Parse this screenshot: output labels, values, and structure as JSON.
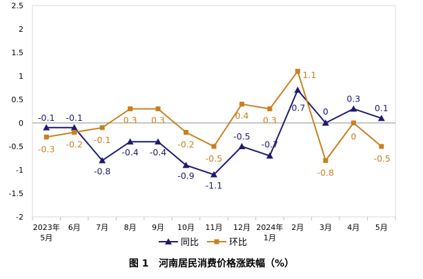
{
  "caption": "图 1   河南居民消费价格涨跌幅（%）",
  "chart_data": {
    "type": "line",
    "title": "",
    "xlabel": "",
    "ylabel": "",
    "categories": [
      "2023年\n5月",
      "6月",
      "7月",
      "8月",
      "9月",
      "10月",
      "11月",
      "12月",
      "2024年\n1月",
      "2月",
      "3月",
      "4月",
      "5月"
    ],
    "ylim": [
      -2,
      2.5
    ],
    "yticks": [
      -2,
      -1.5,
      -1,
      -0.5,
      0,
      0.5,
      1,
      1.5,
      2,
      2.5
    ],
    "ytick_labels": [
      "-2",
      "-1.5",
      "-1",
      "-0.5",
      "0",
      "0.5",
      "1",
      "1.5",
      "2",
      "2.5"
    ],
    "grid": false,
    "legend_position": "bottom-center",
    "series": [
      {
        "name": "同比",
        "color": "#1f1a6e",
        "marker": "triangle",
        "values": [
          -0.1,
          -0.1,
          -0.8,
          -0.4,
          -0.4,
          -0.9,
          -1.1,
          -0.5,
          -0.7,
          0.7,
          0,
          0.3,
          0.1
        ],
        "labels": [
          "-0.1",
          "-0.1",
          "-0.8",
          "-0.4",
          "-0.4",
          "-0.9",
          "-1.1",
          "-0.5",
          "-0.7",
          "0.7",
          "0",
          "0.3",
          "0.1"
        ]
      },
      {
        "name": "环比",
        "color": "#c8801e",
        "marker": "square",
        "values": [
          -0.3,
          -0.2,
          -0.1,
          0.3,
          0.3,
          -0.2,
          -0.5,
          0.4,
          0.3,
          1.1,
          -0.8,
          0,
          -0.5
        ],
        "labels": [
          "-0.3",
          "-0.2",
          "-0.1",
          "0.3",
          "0.3",
          "-0.2",
          "-0.5",
          "0.4",
          "0.3",
          "1.1",
          "-0.8",
          "0",
          "-0.5"
        ]
      }
    ]
  }
}
